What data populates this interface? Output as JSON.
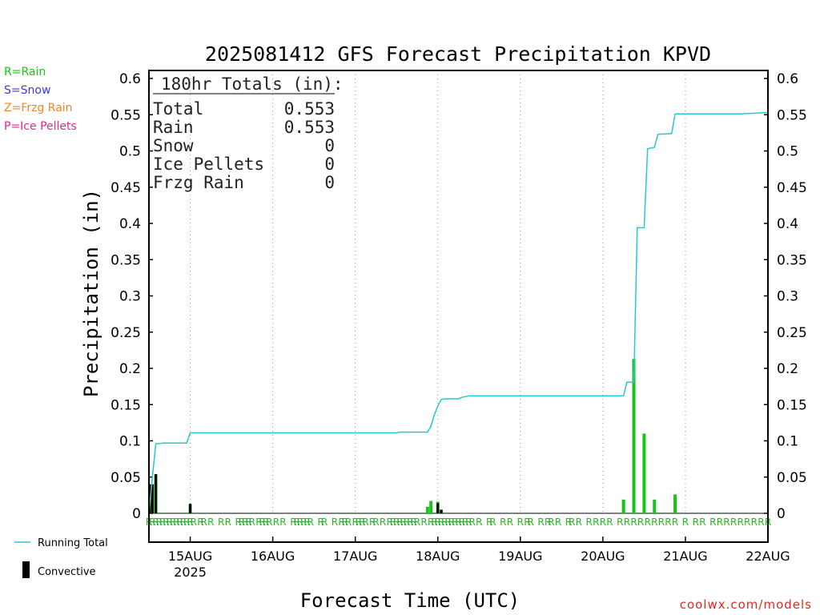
{
  "page": {
    "credit": "coolwx.com/models"
  },
  "precip_legend": [
    {
      "text": "R=Rain",
      "color": "#18c418"
    },
    {
      "text": "S=Snow",
      "color": "#3a3ae8"
    },
    {
      "text": "Z=Frzg Rain",
      "color": "#f0862a"
    },
    {
      "text": "P=Ice Pellets",
      "color": "#e8268c"
    }
  ],
  "totals": {
    "header": "180hr Totals (in):",
    "rows": [
      {
        "label": "Total",
        "value": "0.553"
      },
      {
        "label": "Rain",
        "value": "0.553"
      },
      {
        "label": "Snow",
        "value": "0"
      },
      {
        "label": "Ice Pellets",
        "value": "0"
      },
      {
        "label": "Frzg Rain",
        "value": "0"
      }
    ]
  },
  "bottom_legend": {
    "running_total": "Running Total",
    "convective": "Convective"
  },
  "colors": {
    "running_total": "#26c9cf",
    "rain_bar": "#18c418",
    "convective_bar": "#000000",
    "rain_marker": "#18c418"
  },
  "chart_data": {
    "type": "bar",
    "title": "2025081412 GFS Forecast Precipitation KPVD",
    "xlabel": "Forecast Time (UTC)",
    "ylabel": "Precipitation (in)",
    "ylim": [
      0,
      0.6
    ],
    "yticks": [
      0,
      0.05,
      0.1,
      0.15,
      0.2,
      0.25,
      0.3,
      0.35,
      0.4,
      0.45,
      0.5,
      0.55,
      0.6
    ],
    "ytick_labels": [
      "0",
      "0.05",
      "0.1",
      "0.15",
      "0.2",
      "0.25",
      "0.3",
      "0.35",
      "0.4",
      "0.45",
      "0.5",
      "0.55",
      "0.6"
    ],
    "x_unit": "forecast hour",
    "xlim": [
      12,
      192
    ],
    "xticks": [
      {
        "hour": 24,
        "label": "15AUG",
        "sub": "2025"
      },
      {
        "hour": 48,
        "label": "16AUG",
        "sub": ""
      },
      {
        "hour": 72,
        "label": "17AUG",
        "sub": ""
      },
      {
        "hour": 96,
        "label": "18AUG",
        "sub": ""
      },
      {
        "hour": 120,
        "label": "19AUG",
        "sub": ""
      },
      {
        "hour": 144,
        "label": "20AUG",
        "sub": ""
      },
      {
        "hour": 168,
        "label": "21AUG",
        "sub": ""
      },
      {
        "hour": 192,
        "label": "22AUG",
        "sub": ""
      }
    ],
    "grid": "vertical dotted at day boundaries",
    "series": [
      {
        "name": "Running Total",
        "kind": "line",
        "points": [
          [
            12,
            0
          ],
          [
            13,
            0.05
          ],
          [
            14,
            0.096
          ],
          [
            15,
            0.096
          ],
          [
            16,
            0.097
          ],
          [
            23,
            0.097
          ],
          [
            24,
            0.111
          ],
          [
            84,
            0.111
          ],
          [
            85,
            0.112
          ],
          [
            93,
            0.112
          ],
          [
            94,
            0.12
          ],
          [
            95,
            0.136
          ],
          [
            96,
            0.148
          ],
          [
            97,
            0.157
          ],
          [
            98,
            0.158
          ],
          [
            102,
            0.158
          ],
          [
            103,
            0.16
          ],
          [
            105,
            0.162
          ],
          [
            150,
            0.162
          ],
          [
            151,
            0.181
          ],
          [
            153,
            0.181
          ],
          [
            154,
            0.394
          ],
          [
            156,
            0.394
          ],
          [
            157,
            0.503
          ],
          [
            158,
            0.504
          ],
          [
            159,
            0.505
          ],
          [
            160,
            0.523
          ],
          [
            164,
            0.524
          ],
          [
            165,
            0.551
          ],
          [
            184,
            0.551
          ],
          [
            192,
            0.553
          ]
        ]
      },
      {
        "name": "Rain",
        "kind": "bar",
        "bars": [
          {
            "x": 12.2,
            "v": 0.04
          },
          {
            "x": 13,
            "v": 0.04
          },
          {
            "x": 14,
            "v": 0.054
          },
          {
            "x": 24,
            "v": 0.013
          },
          {
            "x": 93,
            "v": 0.009
          },
          {
            "x": 94,
            "v": 0.017
          },
          {
            "x": 96,
            "v": 0.016
          },
          {
            "x": 97,
            "v": 0.005
          },
          {
            "x": 150,
            "v": 0.019
          },
          {
            "x": 153,
            "v": 0.213
          },
          {
            "x": 156,
            "v": 0.11
          },
          {
            "x": 159,
            "v": 0.019
          },
          {
            "x": 165,
            "v": 0.026
          }
        ]
      },
      {
        "name": "Convective",
        "kind": "bar",
        "bars": [
          {
            "x": 12.2,
            "v": 0.04
          },
          {
            "x": 13,
            "v": 0.04
          },
          {
            "x": 14,
            "v": 0.054
          },
          {
            "x": 24,
            "v": 0.013
          },
          {
            "x": 96,
            "v": 0.014
          },
          {
            "x": 97,
            "v": 0.005
          }
        ]
      }
    ],
    "type_markers": {
      "label": "R",
      "hours": [
        12,
        13,
        14,
        15,
        16,
        17,
        18,
        19,
        20,
        21,
        22,
        23,
        24,
        25,
        27,
        28,
        30,
        33,
        35,
        38,
        39,
        40,
        41,
        42,
        44,
        45,
        46,
        47,
        49,
        51,
        54,
        55,
        56,
        57,
        58,
        59,
        62,
        63,
        66,
        68,
        69,
        70,
        72,
        73,
        74,
        75,
        77,
        78,
        80,
        82,
        83,
        84,
        85,
        86,
        87,
        88,
        89,
        90,
        92,
        94,
        95,
        96,
        97,
        98,
        99,
        100,
        101,
        102,
        103,
        104,
        105,
        106,
        108,
        111,
        112,
        115,
        117,
        120,
        122,
        123,
        126,
        128,
        129,
        131,
        134,
        135,
        137,
        140,
        142,
        144,
        146,
        149,
        151,
        153,
        155,
        157,
        159,
        161,
        163,
        165,
        168,
        171,
        173,
        176,
        178,
        180,
        182,
        184,
        186,
        188,
        190,
        192
      ]
    }
  }
}
